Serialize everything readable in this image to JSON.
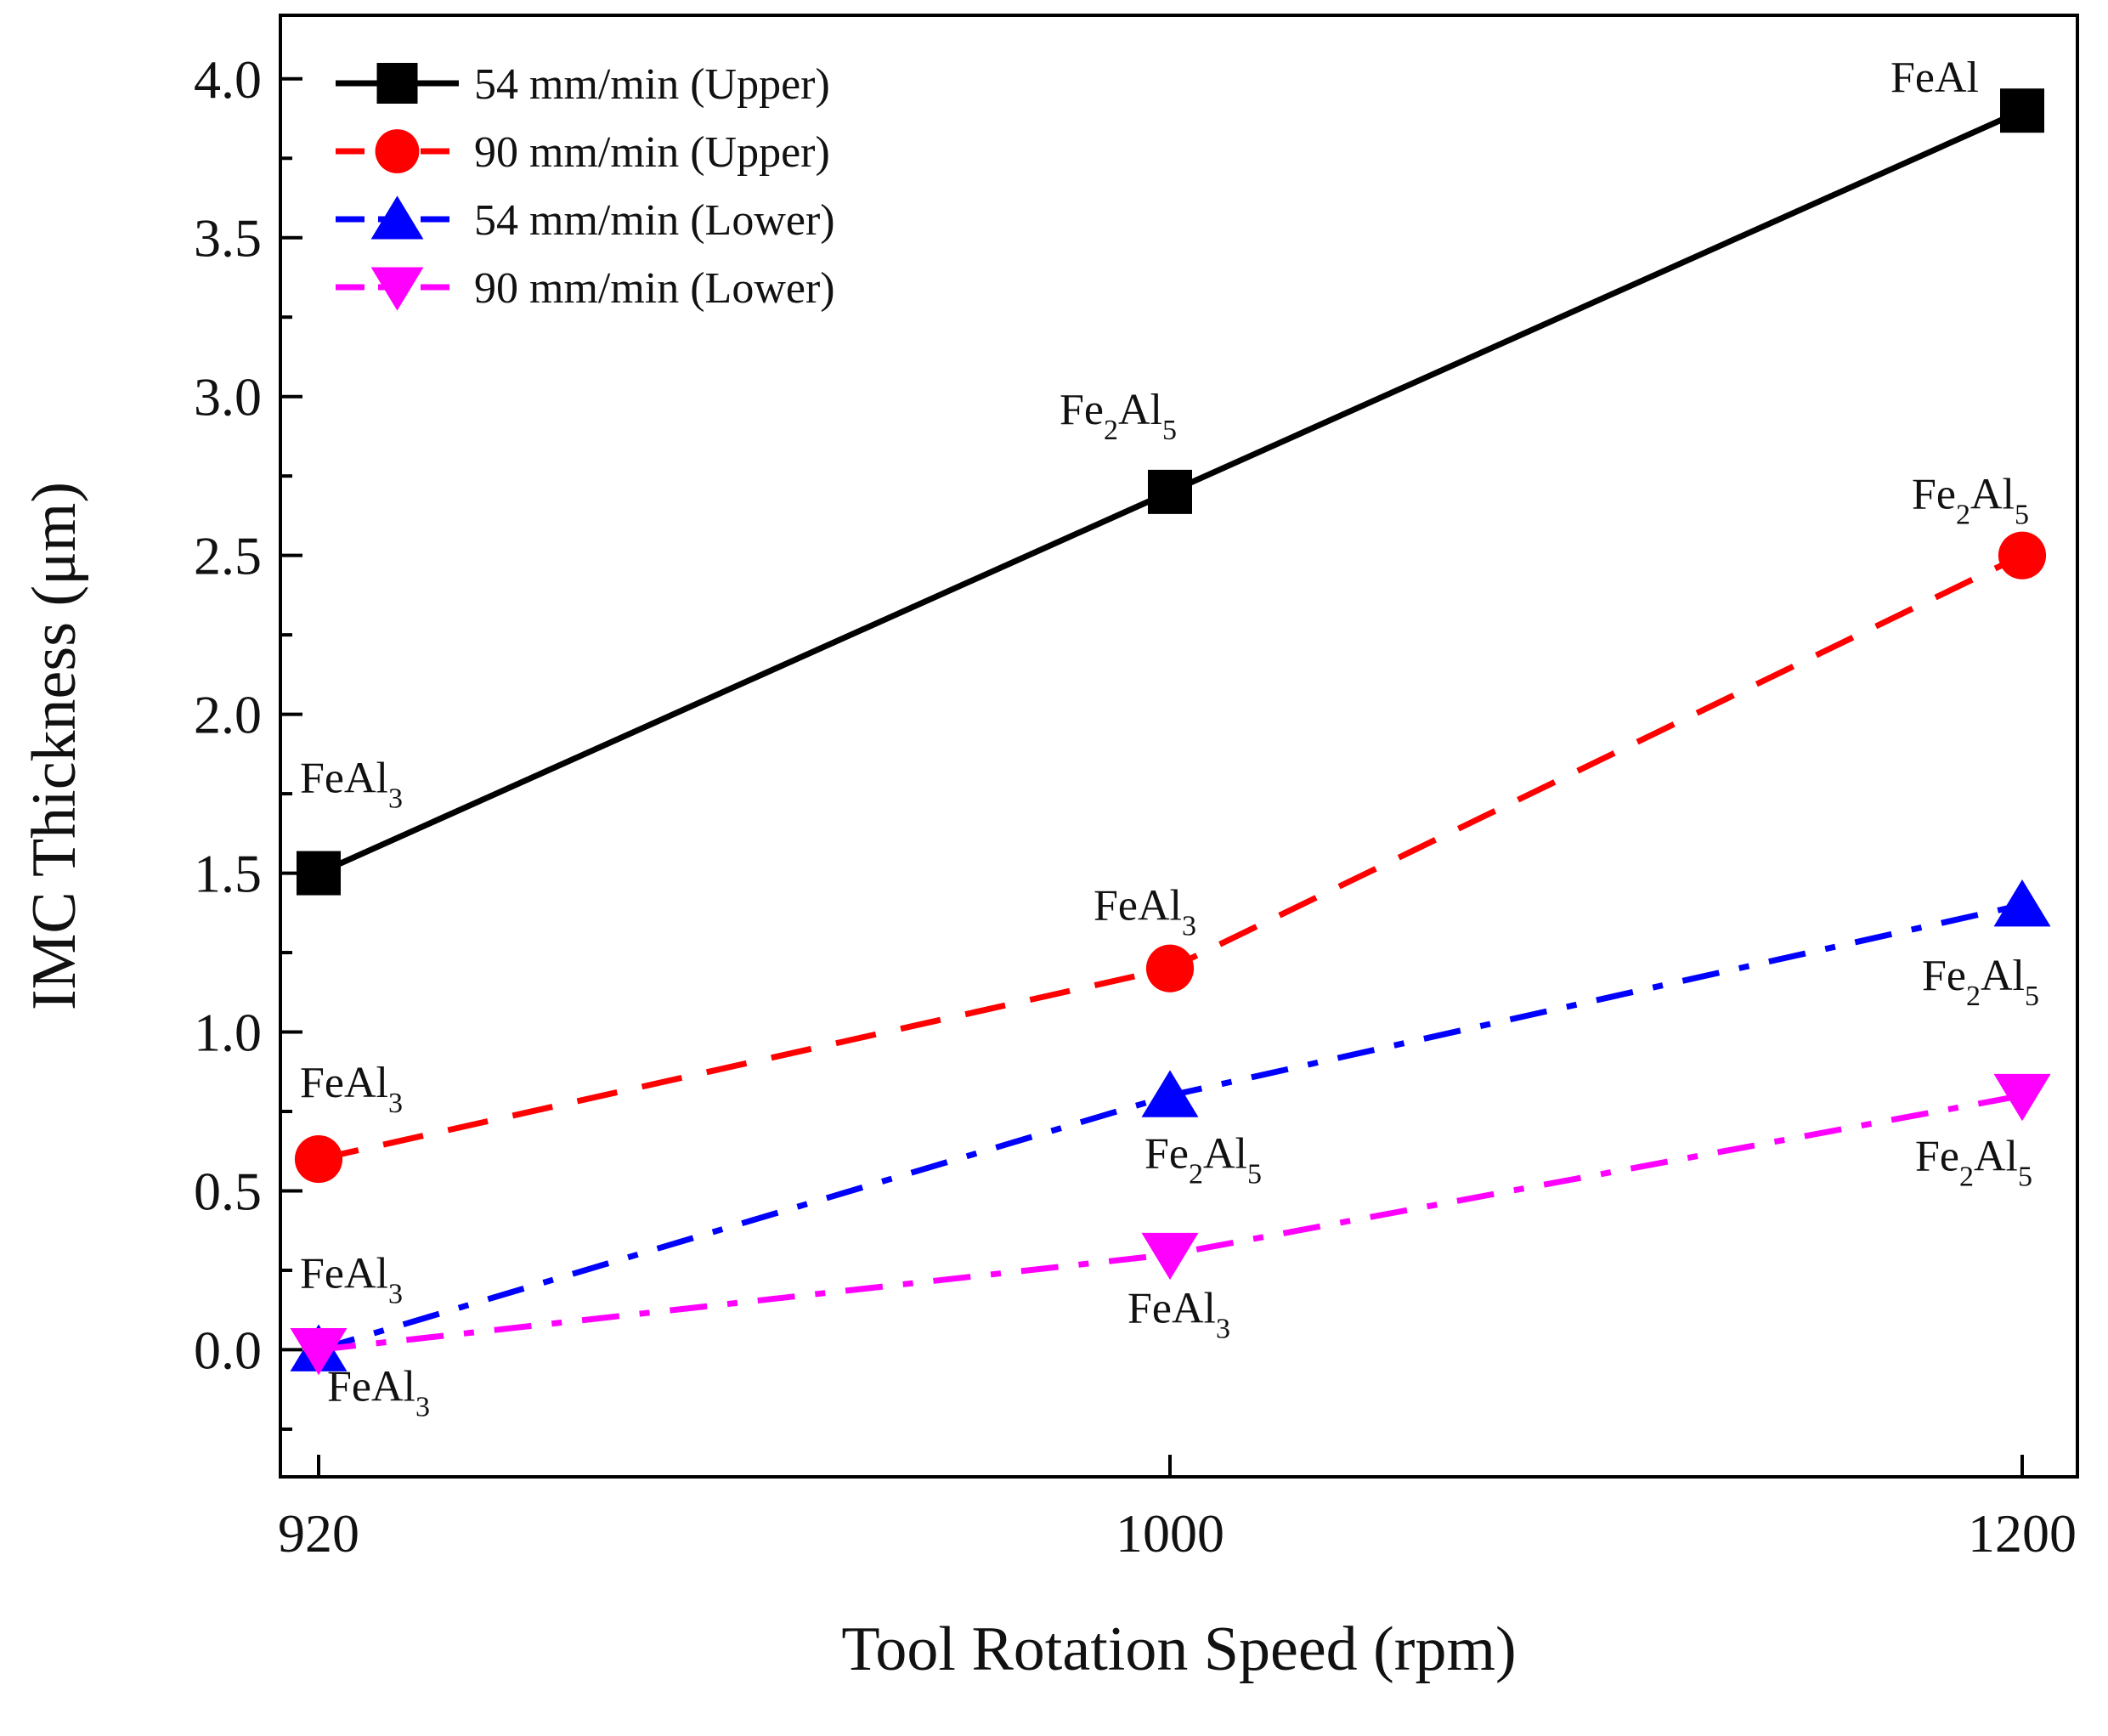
{
  "chart_data": {
    "type": "line",
    "title": "",
    "xlabel": "Tool Rotation Speed (rpm)",
    "ylabel": "IMC Thickness (μm)",
    "x_categories": [
      "920",
      "1000",
      "1200"
    ],
    "ylim": [
      -0.4,
      4.2
    ],
    "yticks": [
      "0.0",
      "0.5",
      "1.0",
      "1.5",
      "2.0",
      "2.5",
      "3.0",
      "3.5",
      "4.0"
    ],
    "grid": false,
    "legend_position": "top-left",
    "series": [
      {
        "name": "54 mm/min (Upper)",
        "color": "#000000",
        "marker": "square",
        "dash": "solid",
        "values": [
          1.5,
          2.7,
          3.9
        ],
        "annotations": [
          {
            "main": "FeAl",
            "sub": "3",
            "tail": ""
          },
          {
            "main": "Fe",
            "sub": "2",
            "tail": "Al",
            "sub2": "5"
          },
          {
            "main": "FeAl",
            "sub": "",
            "tail": ""
          }
        ]
      },
      {
        "name": "90 mm/min (Upper)",
        "color": "#ff0000",
        "marker": "circle",
        "dash": "dashed",
        "values": [
          0.6,
          1.2,
          2.5
        ],
        "annotations": [
          {
            "main": "FeAl",
            "sub": "3",
            "tail": ""
          },
          {
            "main": "FeAl",
            "sub": "3",
            "tail": ""
          },
          {
            "main": "Fe",
            "sub": "2",
            "tail": "Al",
            "sub2": "5"
          }
        ]
      },
      {
        "name": "54 mm/min (Lower)",
        "color": "#0000ff",
        "marker": "triangle-up",
        "dash": "dash-dot",
        "values": [
          0.0,
          0.8,
          1.4
        ],
        "annotations": [
          {
            "main": "FeAl",
            "sub": "3",
            "tail": ""
          },
          {
            "main": "Fe",
            "sub": "2",
            "tail": "Al",
            "sub2": "5"
          },
          {
            "main": "Fe",
            "sub": "2",
            "tail": "Al",
            "sub2": "5"
          }
        ]
      },
      {
        "name": "90 mm/min (Lower)",
        "color": "#ff00ff",
        "marker": "triangle-down",
        "dash": "dash-dot",
        "values": [
          0.0,
          0.3,
          0.8
        ],
        "annotations": [
          {
            "main": "FeAl",
            "sub": "3",
            "tail": ""
          },
          {
            "main": "FeAl",
            "sub": "3",
            "tail": ""
          },
          {
            "main": "Fe",
            "sub": "2",
            "tail": "Al",
            "sub2": "5"
          }
        ]
      }
    ]
  }
}
